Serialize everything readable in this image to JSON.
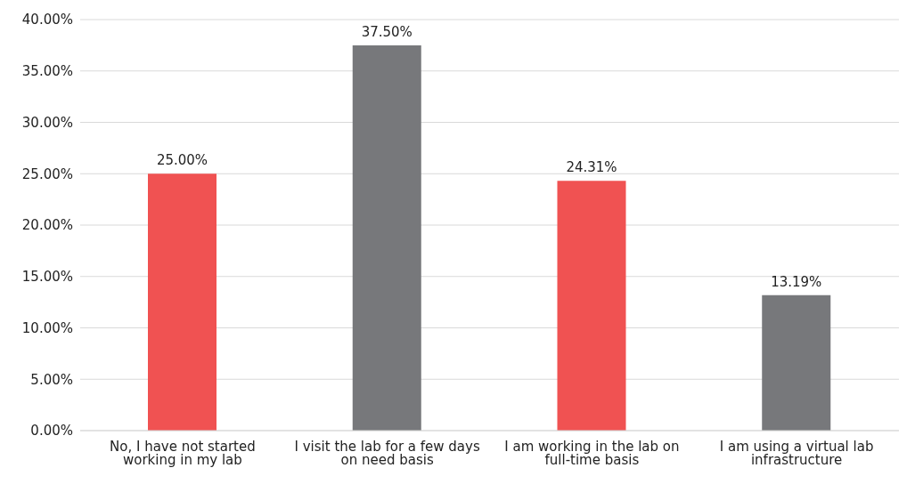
{
  "chart_data": {
    "type": "bar",
    "categories": [
      "No, I have not started working in my lab",
      "I visit the lab for a few days on need basis",
      "I am working in the lab on full-time basis",
      "I am using a virtual lab infrastructure"
    ],
    "values": [
      25.0,
      37.5,
      24.31,
      13.19
    ],
    "colors": [
      "#f05252",
      "#77787b",
      "#f05252",
      "#77787b"
    ],
    "value_labels": [
      "25.00%",
      "37.50%",
      "24.31%",
      "13.19%"
    ],
    "ylim": [
      0,
      40
    ],
    "yticks": [
      {
        "value": 0,
        "label": "0.00%"
      },
      {
        "value": 5,
        "label": "5.00%"
      },
      {
        "value": 10,
        "label": "10.00%"
      },
      {
        "value": 15,
        "label": "15.00%"
      },
      {
        "value": 20,
        "label": "20.00%"
      },
      {
        "value": 25,
        "label": "25.00%"
      },
      {
        "value": 30,
        "label": "30.00%"
      },
      {
        "value": 35,
        "label": "35.00%"
      },
      {
        "value": 40,
        "label": "40.00%"
      }
    ],
    "grid": "y",
    "legend": false
  }
}
